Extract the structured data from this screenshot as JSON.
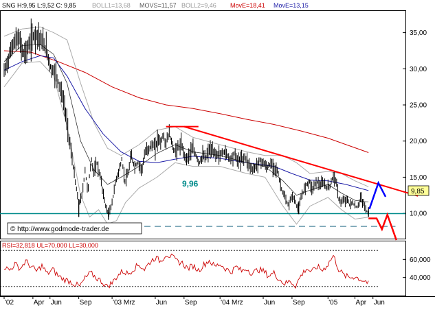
{
  "header": {
    "symbol_text": "SNG H:9,95 L:9,52 C: 9,85",
    "boll1_text": "BOLL1=13,68",
    "movs_text": "MOVS=11,57",
    "boll2_text": "BOLL2=9,46",
    "movel_text": "MovE=18,41",
    "moves_text": "MovE=13,15"
  },
  "copyright": "© http://www.godmode-trader.de",
  "support_label": "9,96",
  "last_price_label": "9,85",
  "rsi_header": "RSI=32,818 UL=70,000 LL=30,000",
  "colors": {
    "price": "#000000",
    "boll": "#aaaaaa",
    "movs": "#333333",
    "move_long": "#cc0000",
    "move_short": "#1a1aa6",
    "support": "#008b8b",
    "trend": "#ff0000",
    "projection_up": "#0000ff",
    "projection_down": "#ff0000",
    "rsi": "#cc0000",
    "last_price_bg": "#ffff99"
  },
  "chart_data": [
    {
      "type": "line",
      "title": "",
      "series_kind": "price-ohlc",
      "ylim": [
        6.5,
        38
      ],
      "y_ticks": [
        {
          "value": 35,
          "label": "35,00"
        },
        {
          "value": 30,
          "label": "30,00"
        },
        {
          "value": 25,
          "label": "25,00"
        },
        {
          "value": 20,
          "label": "20,00"
        },
        {
          "value": 15,
          "label": "15,00"
        },
        {
          "value": 10,
          "label": "10,00"
        }
      ],
      "x_ticks": [
        {
          "t": 0.0,
          "label": "'02"
        },
        {
          "t": 3.2,
          "label": "Apr"
        },
        {
          "t": 5.1,
          "label": "Jun"
        },
        {
          "t": 8.3,
          "label": "Sep"
        },
        {
          "t": 12.0,
          "label": "'03 Mrz"
        },
        {
          "t": 16.8,
          "label": "Jun"
        },
        {
          "t": 20.0,
          "label": "Sep"
        },
        {
          "t": 24.0,
          "label": "'04 Mrz"
        },
        {
          "t": 28.8,
          "label": "Jun"
        },
        {
          "t": 32.0,
          "label": "Sep"
        },
        {
          "t": 36.0,
          "label": "'05"
        },
        {
          "t": 39.0,
          "label": "Apr"
        },
        {
          "t": 41.0,
          "label": "Jun"
        }
      ],
      "price_points": [
        [
          0.0,
          29.5
        ],
        [
          0.5,
          31.5
        ],
        [
          1.0,
          33.5
        ],
        [
          1.6,
          34.2
        ],
        [
          2.2,
          32.0
        ],
        [
          2.7,
          33.0
        ],
        [
          3.2,
          34.5
        ],
        [
          3.7,
          34.8
        ],
        [
          4.2,
          33.8
        ],
        [
          4.7,
          32.6
        ],
        [
          5.2,
          30.0
        ],
        [
          5.7,
          29.5
        ],
        [
          6.2,
          27.5
        ],
        [
          6.7,
          25.0
        ],
        [
          7.1,
          21.5
        ],
        [
          7.5,
          18.0
        ],
        [
          7.9,
          14.5
        ],
        [
          8.3,
          11.0
        ],
        [
          8.7,
          12.8
        ],
        [
          9.0,
          16.0
        ],
        [
          9.3,
          13.0
        ],
        [
          9.7,
          17.5
        ],
        [
          10.0,
          15.5
        ],
        [
          10.3,
          17.0
        ],
        [
          10.7,
          15.0
        ],
        [
          11.0,
          12.8
        ],
        [
          11.3,
          11.0
        ],
        [
          11.6,
          9.8
        ],
        [
          11.9,
          10.8
        ],
        [
          12.2,
          13.0
        ],
        [
          12.5,
          15.0
        ],
        [
          12.8,
          16.0
        ],
        [
          13.1,
          17.5
        ],
        [
          13.4,
          14.5
        ],
        [
          13.8,
          15.5
        ],
        [
          14.1,
          18.0
        ],
        [
          14.5,
          16.5
        ],
        [
          14.9,
          17.0
        ],
        [
          15.3,
          16.0
        ],
        [
          15.7,
          18.5
        ],
        [
          16.1,
          19.0
        ],
        [
          16.5,
          19.5
        ],
        [
          16.8,
          19.0
        ],
        [
          17.1,
          20.5
        ],
        [
          17.4,
          19.8
        ],
        [
          17.7,
          20.8
        ],
        [
          18.0,
          19.5
        ],
        [
          18.3,
          21.2
        ],
        [
          18.6,
          20.0
        ],
        [
          18.9,
          18.5
        ],
        [
          19.3,
          19.0
        ],
        [
          19.7,
          19.5
        ],
        [
          20.0,
          18.2
        ],
        [
          20.3,
          17.5
        ],
        [
          20.7,
          18.5
        ],
        [
          21.0,
          18.8
        ],
        [
          21.3,
          18.0
        ],
        [
          21.7,
          17.0
        ],
        [
          22.1,
          18.0
        ],
        [
          22.4,
          17.6
        ],
        [
          22.8,
          18.8
        ],
        [
          23.2,
          18.5
        ],
        [
          23.6,
          18.2
        ],
        [
          24.0,
          18.0
        ],
        [
          24.4,
          18.6
        ],
        [
          24.8,
          18.1
        ],
        [
          25.2,
          17.5
        ],
        [
          25.6,
          18.3
        ],
        [
          26.0,
          17.2
        ],
        [
          26.4,
          17.5
        ],
        [
          26.8,
          17.8
        ],
        [
          27.2,
          16.8
        ],
        [
          27.6,
          16.0
        ],
        [
          28.0,
          16.5
        ],
        [
          28.4,
          17.3
        ],
        [
          28.8,
          17.0
        ],
        [
          29.2,
          16.3
        ],
        [
          29.6,
          16.8
        ],
        [
          30.0,
          16.5
        ],
        [
          30.4,
          15.8
        ],
        [
          30.8,
          13.5
        ],
        [
          31.2,
          12.2
        ],
        [
          31.6,
          11.0
        ],
        [
          32.0,
          12.5
        ],
        [
          32.3,
          11.8
        ],
        [
          32.7,
          10.5
        ],
        [
          33.1,
          12.5
        ],
        [
          33.5,
          13.8
        ],
        [
          33.9,
          14.5
        ],
        [
          34.3,
          13.3
        ],
        [
          34.7,
          14.5
        ],
        [
          35.1,
          13.8
        ],
        [
          35.5,
          14.2
        ],
        [
          35.9,
          13.5
        ],
        [
          36.3,
          14.0
        ],
        [
          36.6,
          15.2
        ],
        [
          36.9,
          14.5
        ],
        [
          37.2,
          12.0
        ],
        [
          37.5,
          11.5
        ],
        [
          37.8,
          11.8
        ],
        [
          38.1,
          12.0
        ],
        [
          38.4,
          11.2
        ],
        [
          38.7,
          11.5
        ],
        [
          39.0,
          11.0
        ],
        [
          39.3,
          10.8
        ],
        [
          39.6,
          12.2
        ],
        [
          39.9,
          11.5
        ],
        [
          40.2,
          10.6
        ],
        [
          40.5,
          9.85
        ]
      ],
      "lows": [
        {
          "t": 8.3,
          "value": 9.5
        },
        {
          "t": 11.6,
          "value": 9.1
        },
        {
          "t": 32.7,
          "value": 9.9
        },
        {
          "t": 40.5,
          "value": 9.52
        }
      ],
      "support_level": 9.96,
      "lower_dashed_level": 8.2,
      "resistance_segment": {
        "t1": 18.0,
        "t2": 21.6,
        "value": 22.0
      },
      "downtrend_line": {
        "t1": 20.0,
        "y1": 22.0,
        "t2": 46.0,
        "y2": 12.4
      },
      "projection_up": [
        [
          40.6,
          10.6
        ],
        [
          41.6,
          14.2
        ],
        [
          42.4,
          12.3
        ]
      ],
      "projection_down": [
        [
          40.5,
          9.3
        ],
        [
          41.4,
          9.3
        ],
        [
          42.0,
          7.8
        ],
        [
          42.6,
          9.8
        ],
        [
          43.6,
          6.3
        ]
      ],
      "move_long_points": [
        [
          0,
          32.5
        ],
        [
          3,
          32.3
        ],
        [
          6,
          31.0
        ],
        [
          9,
          29.5
        ],
        [
          12,
          27.5
        ],
        [
          15,
          26.0
        ],
        [
          18,
          25.0
        ],
        [
          21,
          24.5
        ],
        [
          24,
          23.8
        ],
        [
          27,
          23.0
        ],
        [
          30,
          22.3
        ],
        [
          33,
          21.4
        ],
        [
          36,
          20.4
        ],
        [
          40.5,
          18.41
        ]
      ],
      "move_short_points": [
        [
          0,
          29.8
        ],
        [
          2,
          31.0
        ],
        [
          4,
          31.8
        ],
        [
          5.5,
          31.5
        ],
        [
          7,
          29.0
        ],
        [
          9,
          24.5
        ],
        [
          11,
          21.0
        ],
        [
          13,
          18.5
        ],
        [
          15,
          17.2
        ],
        [
          17,
          17.0
        ],
        [
          19,
          17.5
        ],
        [
          21,
          17.9
        ],
        [
          24,
          17.6
        ],
        [
          27,
          17.0
        ],
        [
          30,
          16.5
        ],
        [
          32,
          15.5
        ],
        [
          34,
          14.6
        ],
        [
          36,
          14.5
        ],
        [
          38,
          14.0
        ],
        [
          40.5,
          13.15
        ]
      ],
      "movs_points": [
        [
          0,
          31.0
        ],
        [
          2,
          33.2
        ],
        [
          4,
          33.4
        ],
        [
          5.5,
          32.0
        ],
        [
          7,
          28.0
        ],
        [
          8.5,
          20.0
        ],
        [
          10,
          16.0
        ],
        [
          11.5,
          14.0
        ],
        [
          13,
          15.0
        ],
        [
          15,
          16.5
        ],
        [
          17,
          18.3
        ],
        [
          19,
          19.5
        ],
        [
          21,
          18.5
        ],
        [
          24,
          18.0
        ],
        [
          27,
          17.0
        ],
        [
          29,
          16.5
        ],
        [
          31,
          14.5
        ],
        [
          32.5,
          12.5
        ],
        [
          34,
          13.2
        ],
        [
          36,
          14.0
        ],
        [
          37.5,
          12.8
        ],
        [
          39,
          11.8
        ],
        [
          40.5,
          11.57
        ]
      ],
      "boll_upper_points": [
        [
          0,
          34.5
        ],
        [
          2,
          35.5
        ],
        [
          4,
          35.8
        ],
        [
          5.5,
          35.0
        ],
        [
          7,
          34.0
        ],
        [
          8.5,
          28.0
        ],
        [
          10,
          22.5
        ],
        [
          11.5,
          19.0
        ],
        [
          13,
          18.0
        ],
        [
          15,
          19.5
        ],
        [
          17,
          21.5
        ],
        [
          19,
          22.0
        ],
        [
          21,
          20.5
        ],
        [
          24,
          19.5
        ],
        [
          27,
          18.5
        ],
        [
          29,
          18.0
        ],
        [
          31,
          18.0
        ],
        [
          32.5,
          17.0
        ],
        [
          34,
          15.5
        ],
        [
          36,
          15.8
        ],
        [
          37.5,
          15.5
        ],
        [
          39,
          14.5
        ],
        [
          40.5,
          13.68
        ]
      ],
      "boll_lower_points": [
        [
          0,
          27.5
        ],
        [
          2,
          30.8
        ],
        [
          4,
          31.0
        ],
        [
          5.5,
          29.0
        ],
        [
          7,
          22.0
        ],
        [
          8.5,
          12.5
        ],
        [
          9.5,
          9.5
        ],
        [
          10.5,
          10.5
        ],
        [
          11.5,
          8.5
        ],
        [
          12.5,
          9.0
        ],
        [
          13.5,
          11.5
        ],
        [
          15,
          13.5
        ],
        [
          17,
          15.0
        ],
        [
          19,
          17.0
        ],
        [
          21,
          16.5
        ],
        [
          24,
          16.5
        ],
        [
          27,
          15.5
        ],
        [
          29,
          15.0
        ],
        [
          31,
          11.0
        ],
        [
          32.5,
          8.5
        ],
        [
          34,
          11.0
        ],
        [
          36,
          12.2
        ],
        [
          37.5,
          10.5
        ],
        [
          39,
          9.2
        ],
        [
          40.5,
          9.46
        ]
      ]
    },
    {
      "type": "line",
      "title": "",
      "series_kind": "rsi",
      "ylim": [
        20,
        80
      ],
      "y_ticks": [
        {
          "value": 60,
          "label": "60,000"
        },
        {
          "value": 40,
          "label": "40,000"
        }
      ],
      "upper_level": 70,
      "lower_level": 30,
      "rsi_points": [
        [
          0.0,
          52
        ],
        [
          0.6,
          48
        ],
        [
          1.2,
          55
        ],
        [
          1.8,
          50
        ],
        [
          2.4,
          58
        ],
        [
          3.0,
          52
        ],
        [
          3.6,
          47
        ],
        [
          4.2,
          53
        ],
        [
          4.8,
          44
        ],
        [
          5.4,
          49
        ],
        [
          6.0,
          42
        ],
        [
          6.6,
          38
        ],
        [
          7.2,
          36
        ],
        [
          7.8,
          33
        ],
        [
          8.4,
          30
        ],
        [
          9.0,
          39
        ],
        [
          9.6,
          45
        ],
        [
          10.2,
          40
        ],
        [
          10.8,
          36
        ],
        [
          11.4,
          30
        ],
        [
          12.0,
          34
        ],
        [
          12.6,
          42
        ],
        [
          13.2,
          47
        ],
        [
          13.8,
          44
        ],
        [
          14.4,
          50
        ],
        [
          15.0,
          54
        ],
        [
          15.6,
          49
        ],
        [
          16.2,
          57
        ],
        [
          16.8,
          62
        ],
        [
          17.4,
          58
        ],
        [
          18.0,
          66
        ],
        [
          18.6,
          63
        ],
        [
          19.2,
          58
        ],
        [
          19.8,
          56
        ],
        [
          20.4,
          50
        ],
        [
          21.0,
          53
        ],
        [
          21.6,
          48
        ],
        [
          22.2,
          54
        ],
        [
          22.8,
          59
        ],
        [
          23.4,
          52
        ],
        [
          24.0,
          55
        ],
        [
          24.6,
          50
        ],
        [
          25.2,
          46
        ],
        [
          25.8,
          52
        ],
        [
          26.4,
          47
        ],
        [
          27.0,
          50
        ],
        [
          27.6,
          44
        ],
        [
          28.2,
          49
        ],
        [
          28.8,
          47
        ],
        [
          29.4,
          42
        ],
        [
          30.0,
          45
        ],
        [
          30.6,
          38
        ],
        [
          31.2,
          33
        ],
        [
          31.8,
          36
        ],
        [
          32.4,
          31
        ],
        [
          33.0,
          42
        ],
        [
          33.6,
          50
        ],
        [
          34.2,
          46
        ],
        [
          34.8,
          52
        ],
        [
          35.4,
          48
        ],
        [
          36.0,
          55
        ],
        [
          36.6,
          64
        ],
        [
          37.2,
          49
        ],
        [
          37.8,
          42
        ],
        [
          38.4,
          40
        ],
        [
          39.0,
          41
        ],
        [
          39.6,
          38
        ],
        [
          40.2,
          36
        ],
        [
          40.5,
          32.8
        ]
      ]
    }
  ]
}
